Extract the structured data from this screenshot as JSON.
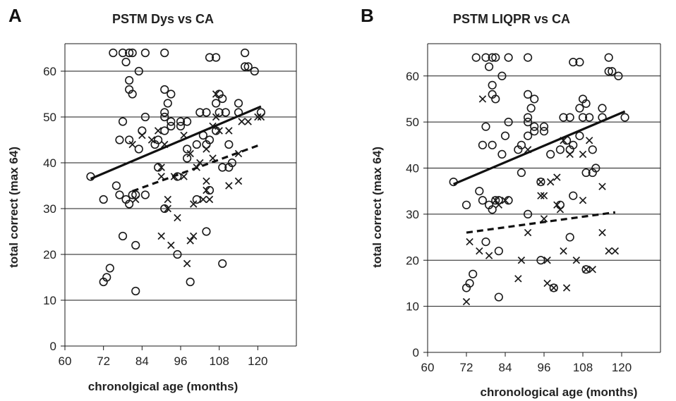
{
  "chart_data": [
    {
      "type": "scatter",
      "panel": "A",
      "title": "PSTM Dys vs CA",
      "xlabel": "chronolgical age (months)",
      "ylabel": "total correct (max 64)",
      "xlim": [
        60,
        132
      ],
      "ylim": [
        0,
        66
      ],
      "xticks": [
        60,
        72,
        84,
        96,
        108,
        120
      ],
      "yticks": [
        0,
        10,
        20,
        30,
        40,
        50,
        60
      ],
      "grid": "horizontal",
      "series": [
        {
          "marker": "circle",
          "points": [
            [
              68,
              37
            ],
            [
              72,
              32
            ],
            [
              72,
              14
            ],
            [
              73,
              15
            ],
            [
              74,
              17
            ],
            [
              75,
              64
            ],
            [
              76,
              35
            ],
            [
              77,
              33
            ],
            [
              77,
              45
            ],
            [
              78,
              64
            ],
            [
              78,
              49
            ],
            [
              78,
              24
            ],
            [
              79,
              62
            ],
            [
              79,
              32
            ],
            [
              80,
              64
            ],
            [
              80,
              58
            ],
            [
              80,
              56
            ],
            [
              80,
              31
            ],
            [
              80,
              45
            ],
            [
              81,
              55
            ],
            [
              81,
              64
            ],
            [
              81,
              33
            ],
            [
              82,
              33
            ],
            [
              82,
              22
            ],
            [
              82,
              12
            ],
            [
              83,
              60
            ],
            [
              83,
              43
            ],
            [
              84,
              47
            ],
            [
              85,
              64
            ],
            [
              85,
              50
            ],
            [
              85,
              33
            ],
            [
              88,
              44
            ],
            [
              89,
              39
            ],
            [
              89,
              45
            ],
            [
              91,
              64
            ],
            [
              91,
              56
            ],
            [
              91,
              51
            ],
            [
              91,
              50
            ],
            [
              91,
              47
            ],
            [
              91,
              30
            ],
            [
              92,
              53
            ],
            [
              93,
              55
            ],
            [
              93,
              49
            ],
            [
              93,
              48
            ],
            [
              95,
              37
            ],
            [
              95,
              20
            ],
            [
              96,
              48
            ],
            [
              96,
              49
            ],
            [
              98,
              41
            ],
            [
              98,
              49
            ],
            [
              98,
              43
            ],
            [
              99,
              14
            ],
            [
              101,
              44
            ],
            [
              101,
              32
            ],
            [
              102,
              51
            ],
            [
              103,
              46
            ],
            [
              104,
              51
            ],
            [
              104,
              44
            ],
            [
              104,
              25
            ],
            [
              105,
              63
            ],
            [
              105,
              45
            ],
            [
              105,
              34
            ],
            [
              107,
              63
            ],
            [
              107,
              53
            ],
            [
              107,
              47
            ],
            [
              108,
              55
            ],
            [
              108,
              51
            ],
            [
              109,
              54
            ],
            [
              109,
              39
            ],
            [
              109,
              18
            ],
            [
              110,
              51
            ],
            [
              111,
              44
            ],
            [
              111,
              39
            ],
            [
              112,
              40
            ],
            [
              114,
              53
            ],
            [
              114,
              51
            ],
            [
              116,
              61
            ],
            [
              116,
              64
            ],
            [
              117,
              61
            ],
            [
              119,
              60
            ],
            [
              121,
              51
            ]
          ]
        },
        {
          "marker": "cross",
          "points": [
            [
              81,
              44
            ],
            [
              82,
              32
            ],
            [
              84,
              46
            ],
            [
              87,
              45
            ],
            [
              89,
              47
            ],
            [
              90,
              24
            ],
            [
              90,
              39
            ],
            [
              90,
              37
            ],
            [
              91,
              44
            ],
            [
              92,
              32
            ],
            [
              92,
              30
            ],
            [
              93,
              22
            ],
            [
              94,
              37
            ],
            [
              95,
              28
            ],
            [
              97,
              46
            ],
            [
              97,
              37
            ],
            [
              98,
              18
            ],
            [
              99,
              42
            ],
            [
              99,
              23
            ],
            [
              100,
              24
            ],
            [
              100,
              31
            ],
            [
              101,
              39
            ],
            [
              102,
              40
            ],
            [
              103,
              32
            ],
            [
              104,
              43
            ],
            [
              104,
              36
            ],
            [
              104,
              34
            ],
            [
              105,
              32
            ],
            [
              106,
              48
            ],
            [
              106,
              41
            ],
            [
              107,
              55
            ],
            [
              107,
              50
            ],
            [
              108,
              47
            ],
            [
              111,
              47
            ],
            [
              111,
              35
            ],
            [
              114,
              42
            ],
            [
              114,
              36
            ],
            [
              115,
              49
            ],
            [
              117,
              49
            ],
            [
              120,
              50
            ],
            [
              121,
              50
            ]
          ]
        }
      ],
      "trendlines": [
        {
          "style": "solid",
          "x": [
            68,
            121
          ],
          "y": [
            36.5,
            52.3
          ]
        },
        {
          "style": "dashed",
          "x": [
            81,
            121
          ],
          "y": [
            33.8,
            44.0
          ]
        }
      ]
    },
    {
      "type": "scatter",
      "panel": "B",
      "title": "PSTM LIQPR vs CA",
      "xlabel": "chronological age (months)",
      "ylabel": "total correct (max 64)",
      "xlim": [
        60,
        132
      ],
      "ylim": [
        0,
        67
      ],
      "xticks": [
        60,
        72,
        84,
        96,
        108,
        120
      ],
      "yticks": [
        0,
        10,
        20,
        30,
        40,
        50,
        60
      ],
      "grid": "horizontal",
      "series": [
        {
          "marker": "circle",
          "points": [
            [
              68,
              37
            ],
            [
              72,
              32
            ],
            [
              72,
              14
            ],
            [
              73,
              15
            ],
            [
              74,
              17
            ],
            [
              75,
              64
            ],
            [
              76,
              35
            ],
            [
              77,
              33
            ],
            [
              77,
              45
            ],
            [
              78,
              64
            ],
            [
              78,
              49
            ],
            [
              78,
              24
            ],
            [
              79,
              62
            ],
            [
              79,
              32
            ],
            [
              80,
              64
            ],
            [
              80,
              58
            ],
            [
              80,
              56
            ],
            [
              80,
              31
            ],
            [
              80,
              45
            ],
            [
              81,
              55
            ],
            [
              81,
              64
            ],
            [
              81,
              33
            ],
            [
              82,
              33
            ],
            [
              82,
              22
            ],
            [
              82,
              12
            ],
            [
              83,
              60
            ],
            [
              83,
              43
            ],
            [
              84,
              47
            ],
            [
              85,
              64
            ],
            [
              85,
              50
            ],
            [
              85,
              33
            ],
            [
              88,
              44
            ],
            [
              89,
              39
            ],
            [
              89,
              45
            ],
            [
              91,
              64
            ],
            [
              91,
              56
            ],
            [
              91,
              51
            ],
            [
              91,
              50
            ],
            [
              91,
              47
            ],
            [
              91,
              30
            ],
            [
              92,
              53
            ],
            [
              93,
              55
            ],
            [
              93,
              49
            ],
            [
              93,
              48
            ],
            [
              95,
              37
            ],
            [
              95,
              20
            ],
            [
              96,
              48
            ],
            [
              96,
              49
            ],
            [
              98,
              43
            ],
            [
              99,
              14
            ],
            [
              101,
              44
            ],
            [
              101,
              32
            ],
            [
              102,
              51
            ],
            [
              103,
              46
            ],
            [
              104,
              51
            ],
            [
              104,
              44
            ],
            [
              104,
              25
            ],
            [
              105,
              63
            ],
            [
              105,
              45
            ],
            [
              105,
              34
            ],
            [
              107,
              63
            ],
            [
              107,
              53
            ],
            [
              107,
              47
            ],
            [
              108,
              55
            ],
            [
              108,
              51
            ],
            [
              109,
              54
            ],
            [
              109,
              39
            ],
            [
              109,
              18
            ],
            [
              110,
              51
            ],
            [
              111,
              44
            ],
            [
              111,
              39
            ],
            [
              112,
              40
            ],
            [
              114,
              53
            ],
            [
              114,
              51
            ],
            [
              116,
              61
            ],
            [
              116,
              64
            ],
            [
              117,
              61
            ],
            [
              119,
              60
            ],
            [
              121,
              51
            ]
          ]
        },
        {
          "marker": "cross",
          "points": [
            [
              72,
              11
            ],
            [
              73,
              24
            ],
            [
              76,
              22
            ],
            [
              77,
              55
            ],
            [
              79,
              21
            ],
            [
              81,
              33
            ],
            [
              82,
              32
            ],
            [
              84,
              33
            ],
            [
              88,
              16
            ],
            [
              89,
              20
            ],
            [
              91,
              26
            ],
            [
              91,
              44
            ],
            [
              95,
              37
            ],
            [
              95,
              34
            ],
            [
              96,
              34
            ],
            [
              96,
              29
            ],
            [
              97,
              20
            ],
            [
              97,
              15
            ],
            [
              98,
              37
            ],
            [
              99,
              14
            ],
            [
              100,
              38
            ],
            [
              100,
              32
            ],
            [
              101,
              31
            ],
            [
              102,
              22
            ],
            [
              102,
              46
            ],
            [
              103,
              14
            ],
            [
              104,
              43
            ],
            [
              106,
              20
            ],
            [
              108,
              33
            ],
            [
              108,
              43
            ],
            [
              109,
              18
            ],
            [
              110,
              46
            ],
            [
              111,
              18
            ],
            [
              114,
              26
            ],
            [
              114,
              36
            ],
            [
              116,
              22
            ],
            [
              118,
              22
            ]
          ]
        }
      ],
      "trendlines": [
        {
          "style": "solid",
          "x": [
            68,
            121
          ],
          "y": [
            36.5,
            52.3
          ]
        },
        {
          "style": "dashed",
          "x": [
            72,
            118
          ],
          "y": [
            26.0,
            30.4
          ]
        }
      ]
    }
  ],
  "panels": [
    {
      "letter": "A"
    },
    {
      "letter": "B"
    }
  ]
}
